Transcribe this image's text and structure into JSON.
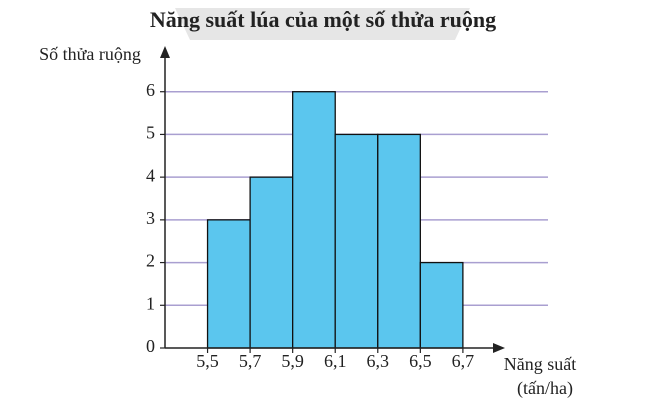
{
  "chart_data": {
    "type": "histogram",
    "title": "Năng suất lúa của một số thửa ruộng",
    "ylabel": "Số thửa ruộng",
    "xlabel": [
      "Năng suất",
      "(tấn/ha)"
    ],
    "bins": [
      5.5,
      5.7,
      5.9,
      6.1,
      6.3,
      6.5,
      6.7
    ],
    "values": [
      3,
      4,
      6,
      5,
      5,
      2
    ],
    "color": "#5bc6ee",
    "xlim": [
      5.3,
      7.1
    ],
    "xticks": [
      {
        "value": 5.5,
        "label": "5,5"
      },
      {
        "value": 5.7,
        "label": "5,7"
      },
      {
        "value": 5.9,
        "label": "5,9"
      },
      {
        "value": 6.1,
        "label": "6,1"
      },
      {
        "value": 6.3,
        "label": "6,3"
      },
      {
        "value": 6.5,
        "label": "6,5"
      },
      {
        "value": 6.7,
        "label": "6,7"
      }
    ],
    "ylim": [
      0,
      7
    ],
    "yticks": [
      0,
      1,
      2,
      3,
      4,
      5,
      6
    ],
    "grid": true,
    "grid_color": "#a99fd0"
  }
}
